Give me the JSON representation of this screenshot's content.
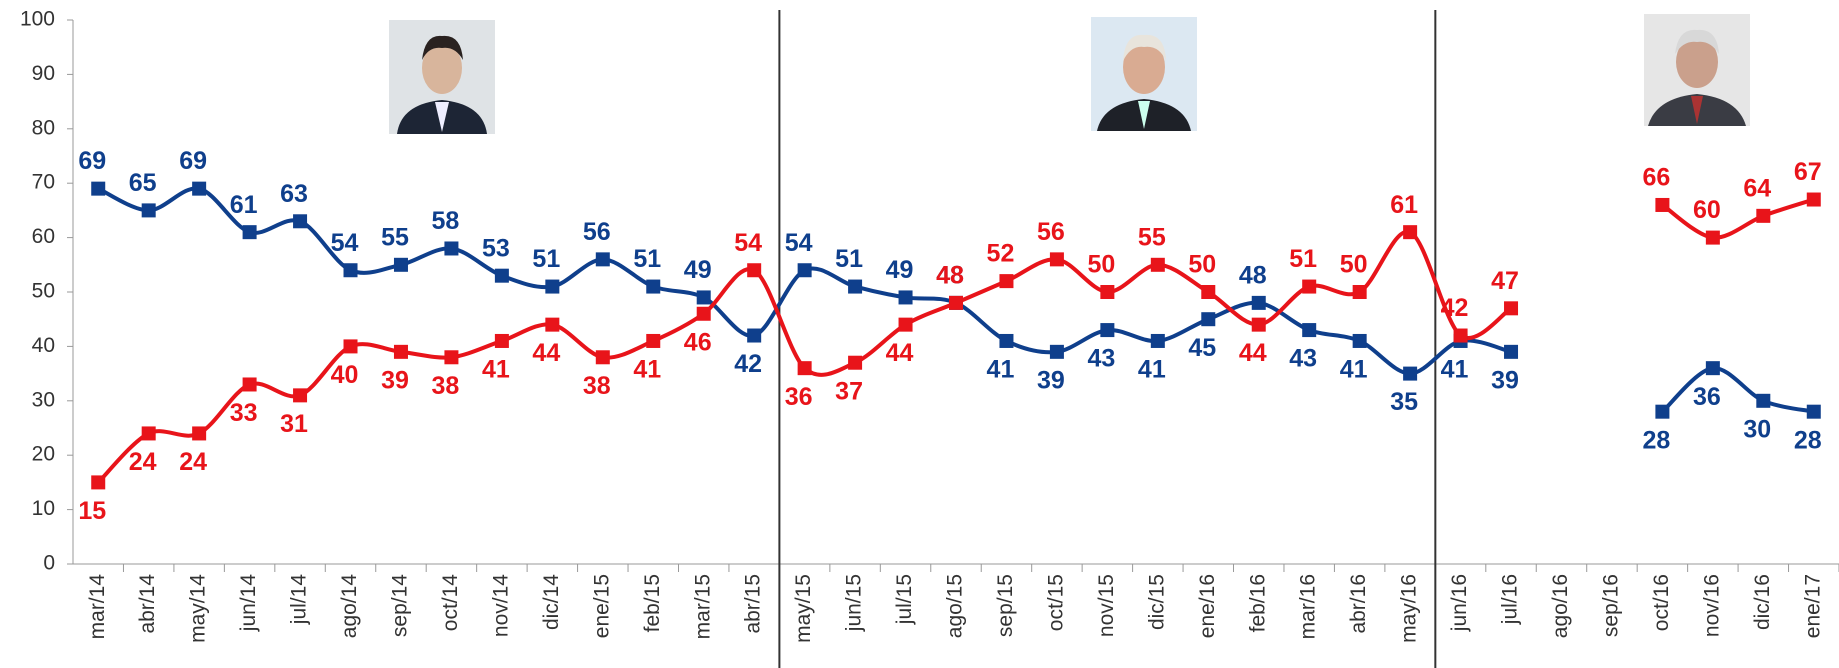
{
  "chart_data": {
    "type": "line",
    "categories": [
      "mar/14",
      "abr/14",
      "may/14",
      "jun/14",
      "jul/14",
      "ago/14",
      "sep/14",
      "oct/14",
      "nov/14",
      "dic/14",
      "ene/15",
      "feb/15",
      "mar/15",
      "abr/15",
      "may/15",
      "jun/15",
      "jul/15",
      "ago/15",
      "sep/15",
      "oct/15",
      "nov/15",
      "dic/15",
      "ene/16",
      "feb/16",
      "mar/16",
      "abr/16",
      "may/16",
      "jun/16",
      "jul/16",
      "ago/16",
      "sep/16",
      "oct/16",
      "nov/16",
      "dic/16",
      "ene/17"
    ],
    "series": [
      {
        "color": "#0f3f8c",
        "values": [
          69,
          65,
          69,
          61,
          63,
          54,
          55,
          58,
          53,
          51,
          56,
          51,
          49,
          42,
          54,
          51,
          49,
          48,
          41,
          39,
          43,
          41,
          45,
          48,
          43,
          41,
          35,
          41,
          39,
          null,
          null,
          28,
          36,
          30,
          28
        ]
      },
      {
        "color": "#e8141a",
        "values": [
          15,
          24,
          24,
          33,
          31,
          40,
          39,
          38,
          41,
          44,
          38,
          41,
          46,
          54,
          36,
          37,
          44,
          48,
          52,
          56,
          50,
          55,
          50,
          44,
          51,
          50,
          61,
          42,
          47,
          null,
          null,
          66,
          60,
          64,
          67
        ]
      }
    ],
    "ylim": [
      0,
      100
    ],
    "yticks": [
      0,
      10,
      20,
      30,
      40,
      50,
      60,
      70,
      80,
      90,
      100
    ]
  }
}
